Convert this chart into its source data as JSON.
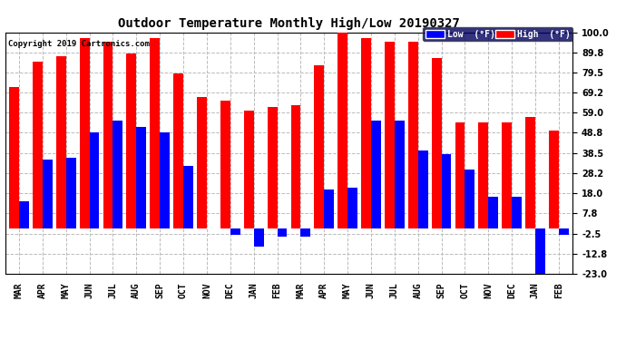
{
  "title": "Outdoor Temperature Monthly High/Low 20190327",
  "copyright": "Copyright 2019 Cartronics.com",
  "legend_low": "Low  (°F)",
  "legend_high": "High  (°F)",
  "months": [
    "MAR",
    "APR",
    "MAY",
    "JUN",
    "JUL",
    "AUG",
    "SEP",
    "OCT",
    "NOV",
    "DEC",
    "JAN",
    "FEB",
    "MAR",
    "APR",
    "MAY",
    "JUN",
    "JUL",
    "AUG",
    "SEP",
    "OCT",
    "NOV",
    "DEC",
    "JAN",
    "FEB"
  ],
  "highs": [
    72,
    85,
    88,
    97,
    95,
    89,
    97,
    79,
    67,
    65,
    60,
    62,
    63,
    83,
    102,
    97,
    95,
    95,
    87,
    54,
    54,
    54,
    57,
    50
  ],
  "lows": [
    14,
    35,
    36,
    49,
    55,
    52,
    49,
    32,
    0,
    -3,
    -9,
    -4,
    -4,
    20,
    21,
    55,
    55,
    40,
    38,
    30,
    16,
    16,
    -25,
    -3
  ],
  "ylim": [
    -23.0,
    100.0
  ],
  "yticks": [
    -23.0,
    -12.8,
    -2.5,
    7.8,
    18.0,
    28.2,
    38.5,
    48.8,
    59.0,
    69.2,
    79.5,
    89.8,
    100.0
  ],
  "ytick_labels": [
    "-23.0",
    "-12.8",
    "-2.5",
    "7.8",
    "18.0",
    "28.2",
    "38.5",
    "48.8",
    "59.0",
    "69.2",
    "79.5",
    "89.8",
    "100.0"
  ],
  "high_bar_width": 0.42,
  "low_bar_width": 0.42,
  "high_color": "#ff0000",
  "low_color": "#0000ff",
  "background_color": "#ffffff",
  "grid_color": "#bbbbbb",
  "title_fontsize": 10,
  "tick_fontsize": 7,
  "copyright_fontsize": 6.5
}
